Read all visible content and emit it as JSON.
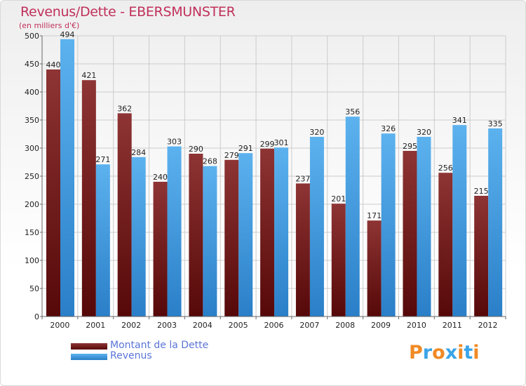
{
  "header": {
    "title": "Revenus/Dette - EBERSMUNSTER",
    "subtitle": "(en milliers d'€)"
  },
  "logo": {
    "text": "Proxiti",
    "colors": [
      "#f08a24",
      "#3aa4e8",
      "#f08a24",
      "#3aa4e8",
      "#f08a24",
      "#3aa4e8",
      "#f08a24"
    ]
  },
  "colors": {
    "dette_dark": "#5a0a0a",
    "dette_light": "#8e3434",
    "revenus_dark": "#2a7fc8",
    "revenus_light": "#5cb2ee",
    "grid": "#cccccc",
    "axis": "#666666"
  },
  "chart_data": {
    "type": "bar",
    "title": "Revenus/Dette - EBERSMUNSTER",
    "ylabel": "(en milliers d'€)",
    "xlabel": "",
    "ylim": [
      0,
      500
    ],
    "yticks": [
      0,
      50,
      100,
      150,
      200,
      250,
      300,
      350,
      400,
      450,
      500
    ],
    "grid": true,
    "legend_position": "bottom-left",
    "categories": [
      "2000",
      "2001",
      "2002",
      "2003",
      "2004",
      "2005",
      "2006",
      "2007",
      "2008",
      "2009",
      "2010",
      "2011",
      "2012"
    ],
    "series": [
      {
        "name": "Montant de la Dette",
        "values": [
          440,
          421,
          362,
          240,
          290,
          279,
          299,
          237,
          201,
          171,
          295,
          256,
          215
        ]
      },
      {
        "name": "Revenus",
        "values": [
          494,
          271,
          284,
          303,
          268,
          291,
          301,
          320,
          356,
          326,
          320,
          341,
          335
        ]
      }
    ]
  }
}
